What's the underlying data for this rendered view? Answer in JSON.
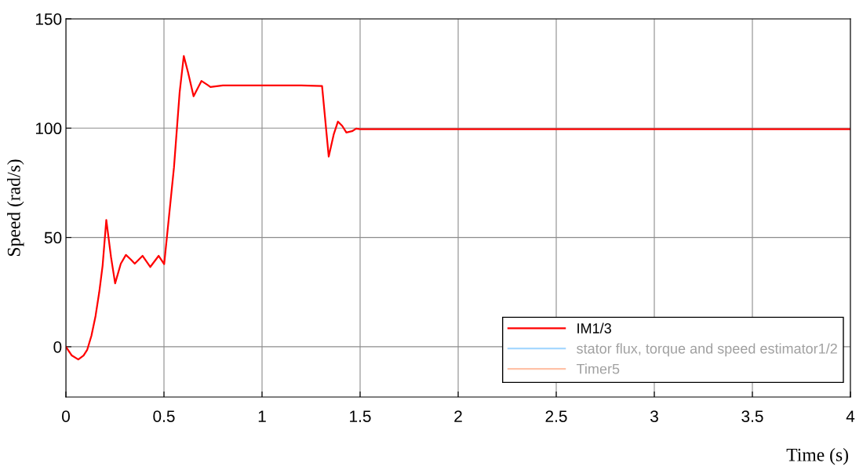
{
  "chart_data": {
    "type": "line",
    "xlabel": "Time (s)",
    "ylabel": "Speed (rad/s)",
    "xlim": [
      0,
      4
    ],
    "xticks": [
      0,
      0.5,
      1,
      1.5,
      2,
      2.5,
      3,
      3.5,
      4
    ],
    "ylim": [
      -23,
      150
    ],
    "yticks": [
      0,
      50,
      100,
      150
    ],
    "grid": true,
    "legend": "bottom right",
    "x": [
      0,
      0.03,
      0.063,
      0.09,
      0.109,
      0.13,
      0.151,
      0.17,
      0.187,
      0.206,
      0.23,
      0.251,
      0.28,
      0.306,
      0.33,
      0.351,
      0.391,
      0.43,
      0.473,
      0.501,
      0.551,
      0.58,
      0.601,
      0.623,
      0.651,
      0.673,
      0.691,
      0.723,
      0.737,
      0.8,
      0.9,
      1.0,
      1.1,
      1.2,
      1.306,
      1.34,
      1.366,
      1.387,
      1.409,
      1.43,
      1.459,
      1.48,
      1.5,
      2.0,
      2.5,
      3.0,
      3.5,
      4.0
    ],
    "series": [
      {
        "name": "IM1/3",
        "color": "#ff0000",
        "values": [
          0,
          -4,
          -5.8,
          -4,
          -1.3,
          5,
          14,
          25,
          37,
          58,
          41,
          29,
          38,
          42,
          40,
          38,
          41.6,
          36.5,
          41.6,
          37.8,
          82,
          116.5,
          133,
          125.4,
          114.6,
          118.4,
          121.6,
          119.7,
          118.8,
          119.5,
          119.5,
          119.5,
          119.5,
          119.5,
          119.3,
          87,
          97.3,
          103,
          101,
          98,
          98.6,
          99.8,
          99.5,
          99.5,
          99.5,
          99.5,
          99.5,
          99.5
        ]
      },
      {
        "name": "stator flux, torque and speed estimator1/2",
        "color": "#a6d8ff",
        "values": [
          null,
          null,
          null,
          null,
          null,
          null,
          null,
          null,
          null,
          null,
          null,
          null,
          null,
          null,
          null,
          null,
          null,
          null,
          null,
          null,
          null,
          null,
          null,
          null,
          null,
          null,
          null,
          null,
          null,
          null,
          null,
          null,
          null,
          null,
          null,
          null,
          null,
          null,
          null,
          null,
          null,
          null,
          null,
          null,
          null,
          null,
          null,
          null
        ]
      },
      {
        "name": "Timer5",
        "color": "#ffc2a8",
        "values": [
          null,
          null,
          null,
          null,
          null,
          null,
          null,
          null,
          null,
          null,
          null,
          null,
          null,
          null,
          null,
          null,
          null,
          null,
          null,
          null,
          null,
          null,
          null,
          null,
          null,
          null,
          null,
          null,
          null,
          null,
          null,
          null,
          null,
          null,
          null,
          null,
          null,
          null,
          null,
          null,
          null,
          null,
          null,
          null,
          null,
          null,
          null,
          null
        ]
      }
    ]
  }
}
